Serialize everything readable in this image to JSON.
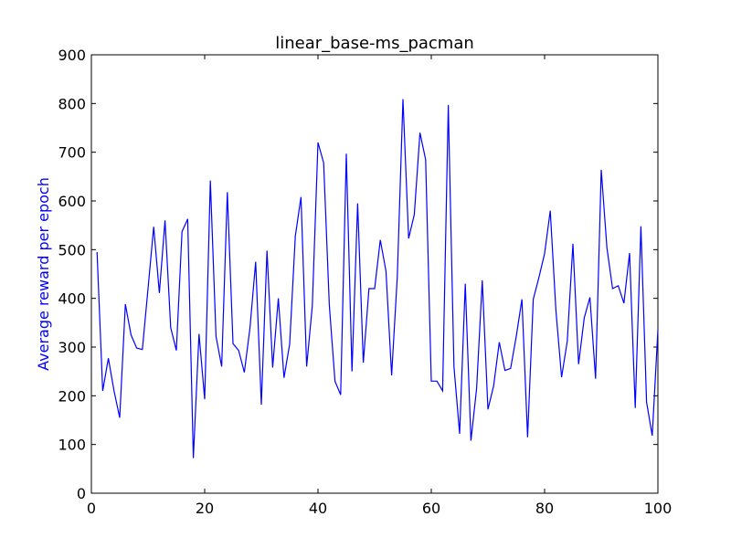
{
  "chart_data": {
    "type": "line",
    "title": "linear_base-ms_pacman",
    "xlabel": "",
    "ylabel": "Average reward per epoch",
    "xlim": [
      0,
      100
    ],
    "ylim": [
      0,
      900
    ],
    "xticks": [
      0,
      20,
      40,
      60,
      80,
      100
    ],
    "yticks": [
      0,
      100,
      200,
      300,
      400,
      500,
      600,
      700,
      800,
      900
    ],
    "grid": false,
    "series": [
      {
        "color": "#0000ff",
        "x": [
          1,
          2,
          3,
          4,
          5,
          6,
          7,
          8,
          9,
          10,
          11,
          12,
          13,
          14,
          15,
          16,
          17,
          18,
          19,
          20,
          21,
          22,
          23,
          24,
          25,
          26,
          27,
          28,
          29,
          30,
          31,
          32,
          33,
          34,
          35,
          36,
          37,
          38,
          39,
          40,
          41,
          42,
          43,
          44,
          45,
          46,
          47,
          48,
          49,
          50,
          51,
          52,
          53,
          54,
          55,
          56,
          57,
          58,
          59,
          60,
          61,
          62,
          63,
          64,
          65,
          66,
          67,
          68,
          69,
          70,
          71,
          72,
          73,
          74,
          75,
          76,
          77,
          78,
          79,
          80,
          81,
          82,
          83,
          84,
          85,
          86,
          87,
          88,
          89,
          90,
          91,
          92,
          93,
          94,
          95,
          96,
          97,
          98,
          99,
          100
        ],
        "values": [
          495,
          210,
          277,
          210,
          155,
          388,
          325,
          298,
          295,
          420,
          547,
          411,
          560,
          340,
          293,
          537,
          563,
          72,
          327,
          193,
          642,
          322,
          260,
          618,
          307,
          293,
          248,
          340,
          475,
          182,
          498,
          258,
          400,
          237,
          306,
          528,
          608,
          260,
          385,
          720,
          678,
          386,
          230,
          202,
          697,
          250,
          595,
          268,
          420,
          420,
          520,
          456,
          242,
          445,
          809,
          523,
          572,
          740,
          685,
          230,
          230,
          210,
          797,
          260,
          122,
          430,
          108,
          215,
          437,
          172,
          220,
          310,
          252,
          256,
          322,
          398,
          115,
          398,
          443,
          492,
          580,
          375,
          238,
          312,
          512,
          265,
          360,
          402,
          235,
          664,
          504,
          420,
          426,
          390,
          493,
          175,
          548,
          187,
          118,
          335
        ]
      }
    ]
  }
}
